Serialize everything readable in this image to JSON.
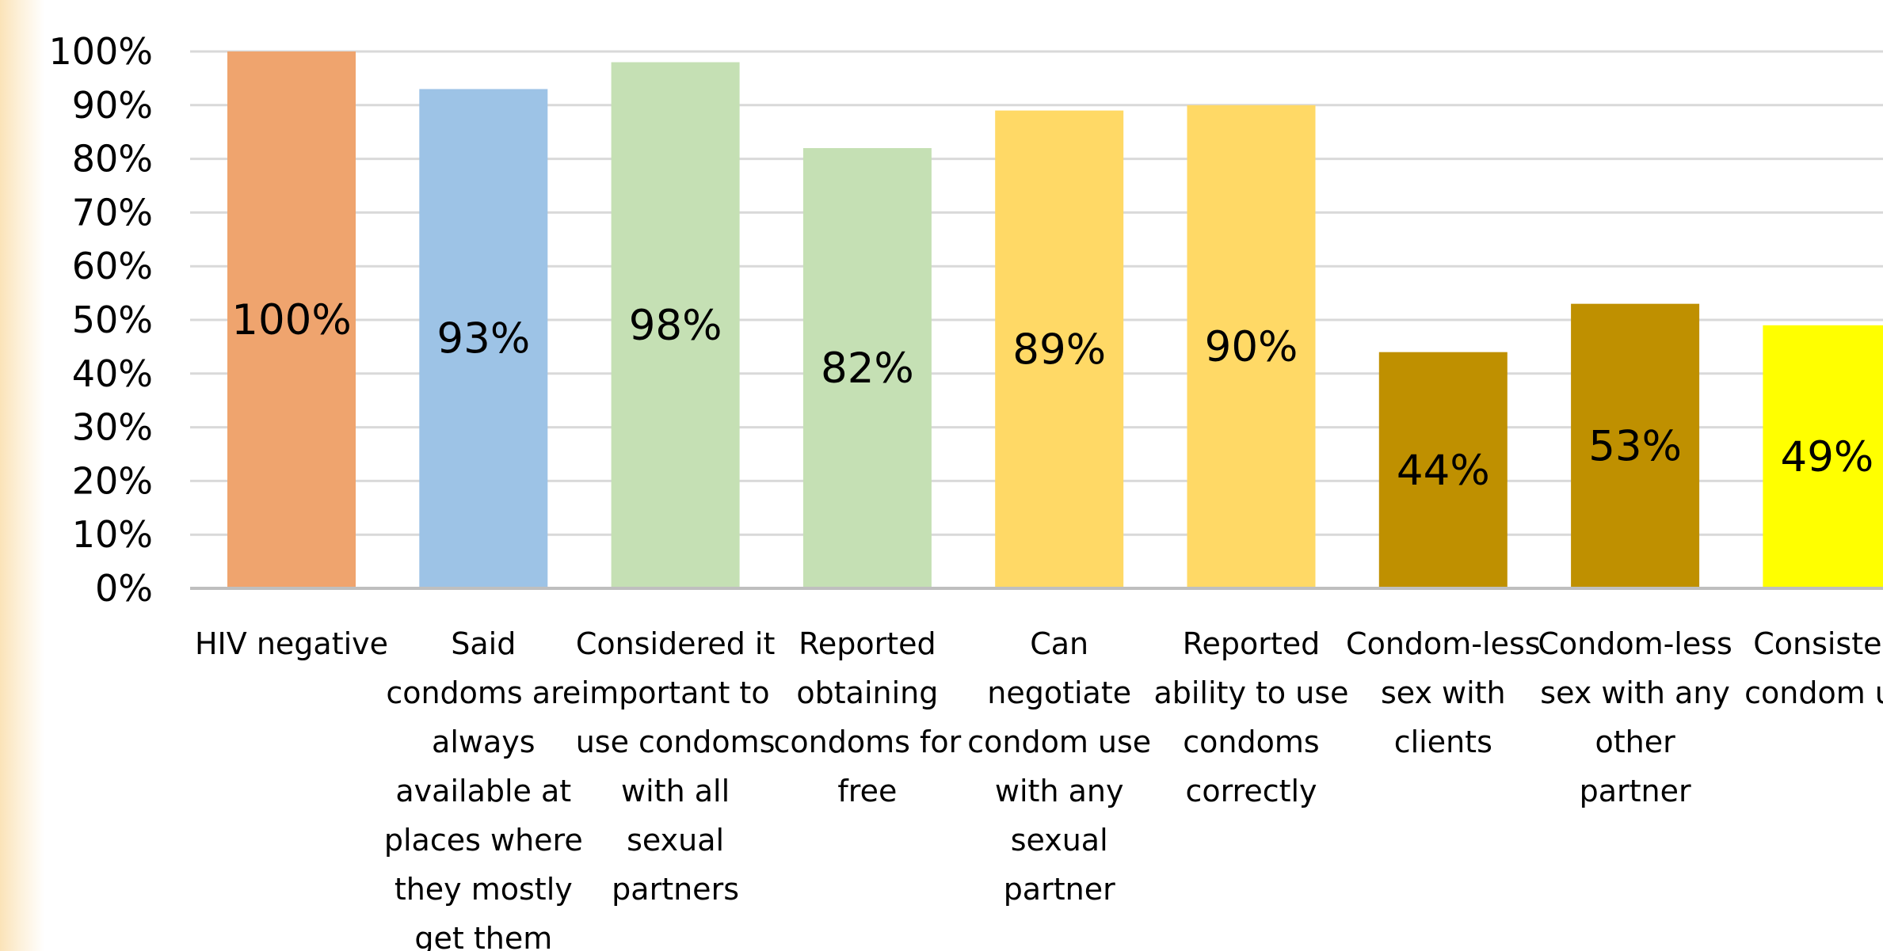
{
  "chart_data": {
    "type": "bar",
    "categories": [
      [
        "HIV negative"
      ],
      [
        "Said",
        "condoms are",
        "always",
        "available at",
        "places where",
        "they mostly",
        "get them"
      ],
      [
        "Considered it",
        "important to",
        "use condoms",
        "with all",
        "sexual",
        "partners"
      ],
      [
        "Reported",
        "obtaining",
        "condoms for",
        "free"
      ],
      [
        "Can",
        "negotiate",
        "condom use",
        "with any",
        "sexual",
        "partner"
      ],
      [
        "Reported",
        "ability to use",
        "condoms",
        "correctly"
      ],
      [
        "Condom-less",
        "sex with",
        "clients"
      ],
      [
        "Condom-less",
        "sex with any",
        "other",
        "partner"
      ],
      [
        "Consisten",
        "condom us"
      ]
    ],
    "values": [
      100,
      93,
      98,
      82,
      89,
      90,
      44,
      53,
      49
    ],
    "data_labels": [
      "100%",
      "93%",
      "98%",
      "82%",
      "89%",
      "90%",
      "44%",
      "53%",
      "49%"
    ],
    "colors": [
      "#EFA46E",
      "#9DC3E6",
      "#C5E0B4",
      "#C5E0B4",
      "#FFD966",
      "#FFD966",
      "#BF9000",
      "#BF9000",
      "#FFFF00"
    ],
    "yticks": [
      "0%",
      "10%",
      "20%",
      "30%",
      "40%",
      "50%",
      "60%",
      "70%",
      "80%",
      "90%",
      "100%"
    ],
    "ylim": [
      0,
      100
    ],
    "grid": true,
    "legend": "none",
    "title": "",
    "xlabel": "",
    "ylabel": ""
  }
}
